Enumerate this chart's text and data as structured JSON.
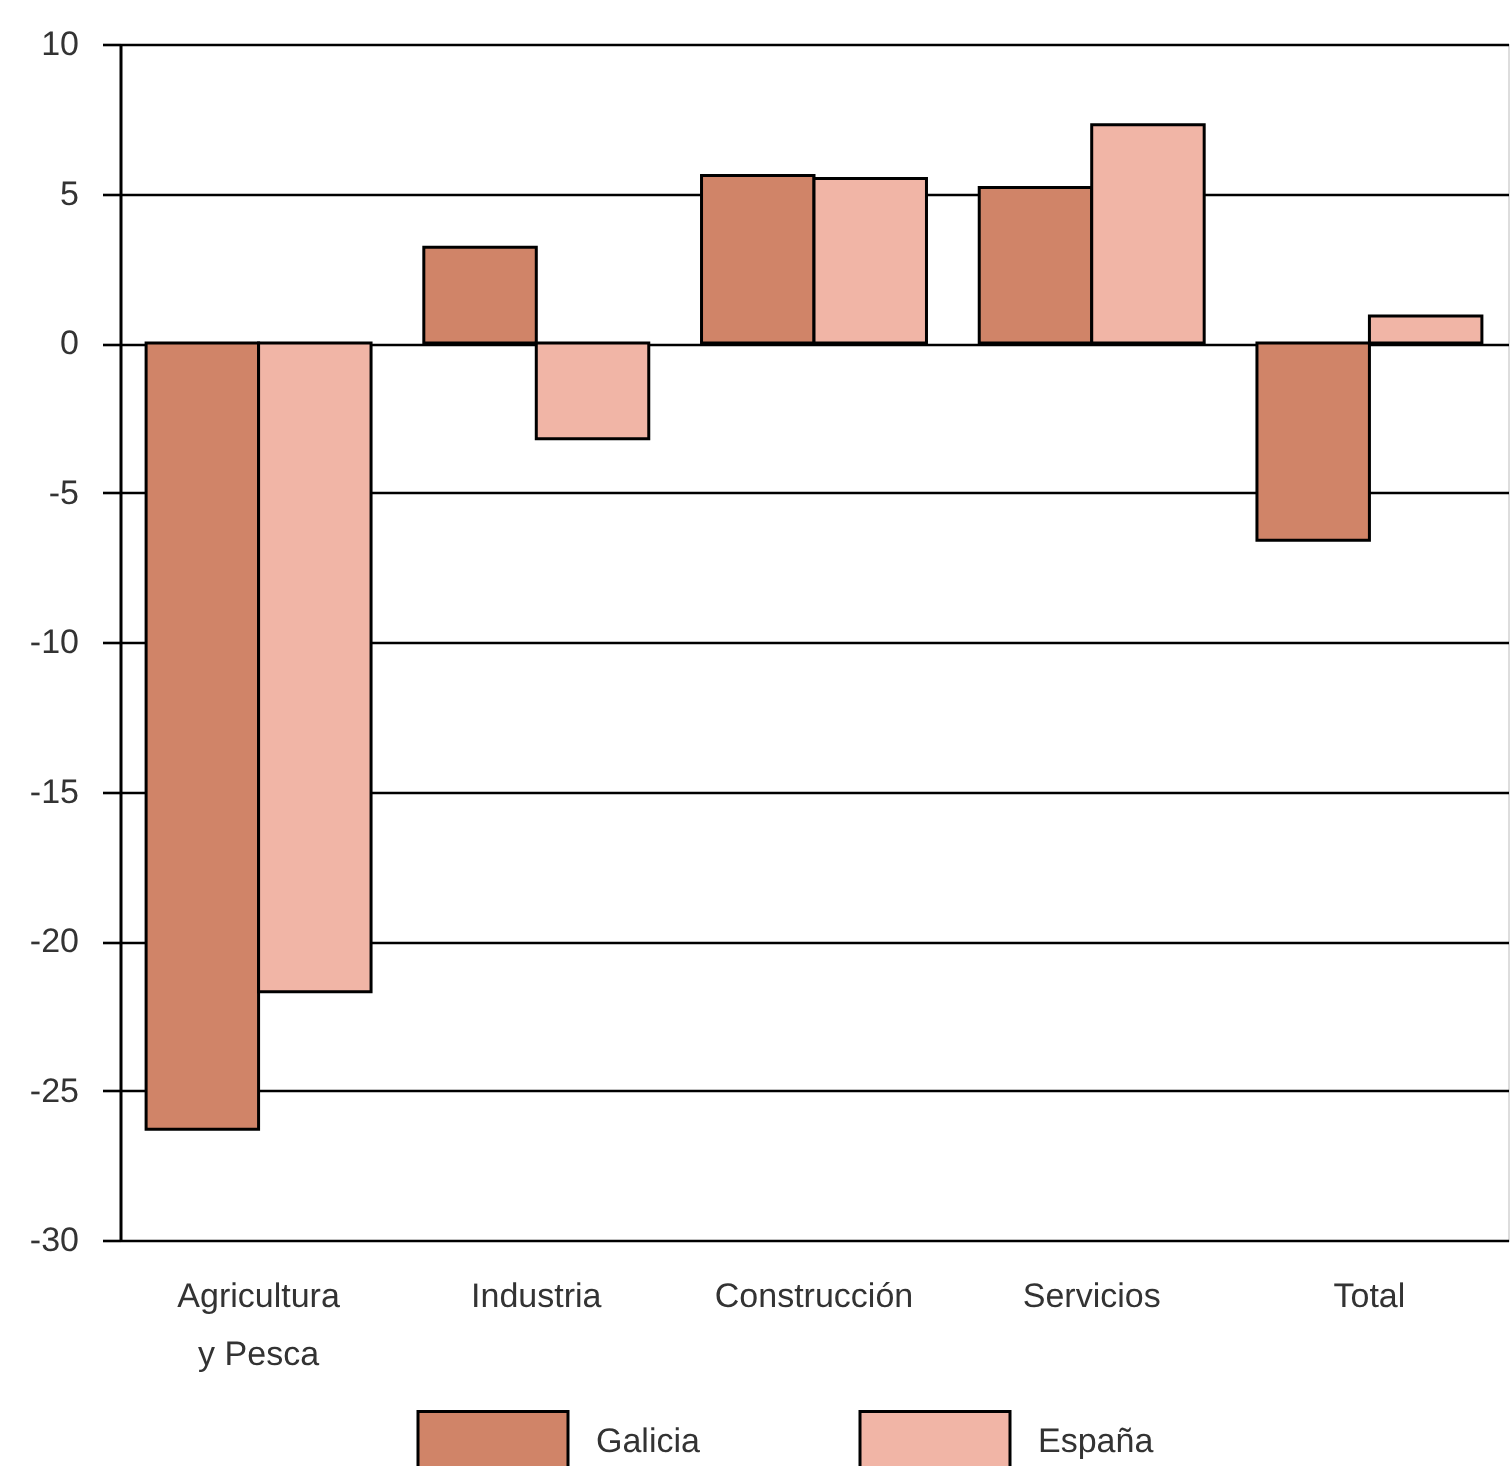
{
  "chart_data": {
    "type": "bar",
    "categories": [
      "Agricultura\ny Pesca",
      "Industria",
      "Construcción",
      "Servicios",
      "Total"
    ],
    "series": [
      {
        "name": "Galicia",
        "color": "#d08468",
        "values": [
          -26.3,
          3.2,
          5.6,
          5.2,
          -6.6
        ]
      },
      {
        "name": "España",
        "color": "#f1b5a6",
        "values": [
          -21.7,
          -3.2,
          5.5,
          7.3,
          0.9
        ]
      }
    ],
    "ylim": [
      -30,
      10
    ],
    "yticks": [
      -30,
      -25,
      -20,
      -15,
      -10,
      -5,
      0,
      5,
      10
    ],
    "grid": "y",
    "legend": "bottom"
  }
}
